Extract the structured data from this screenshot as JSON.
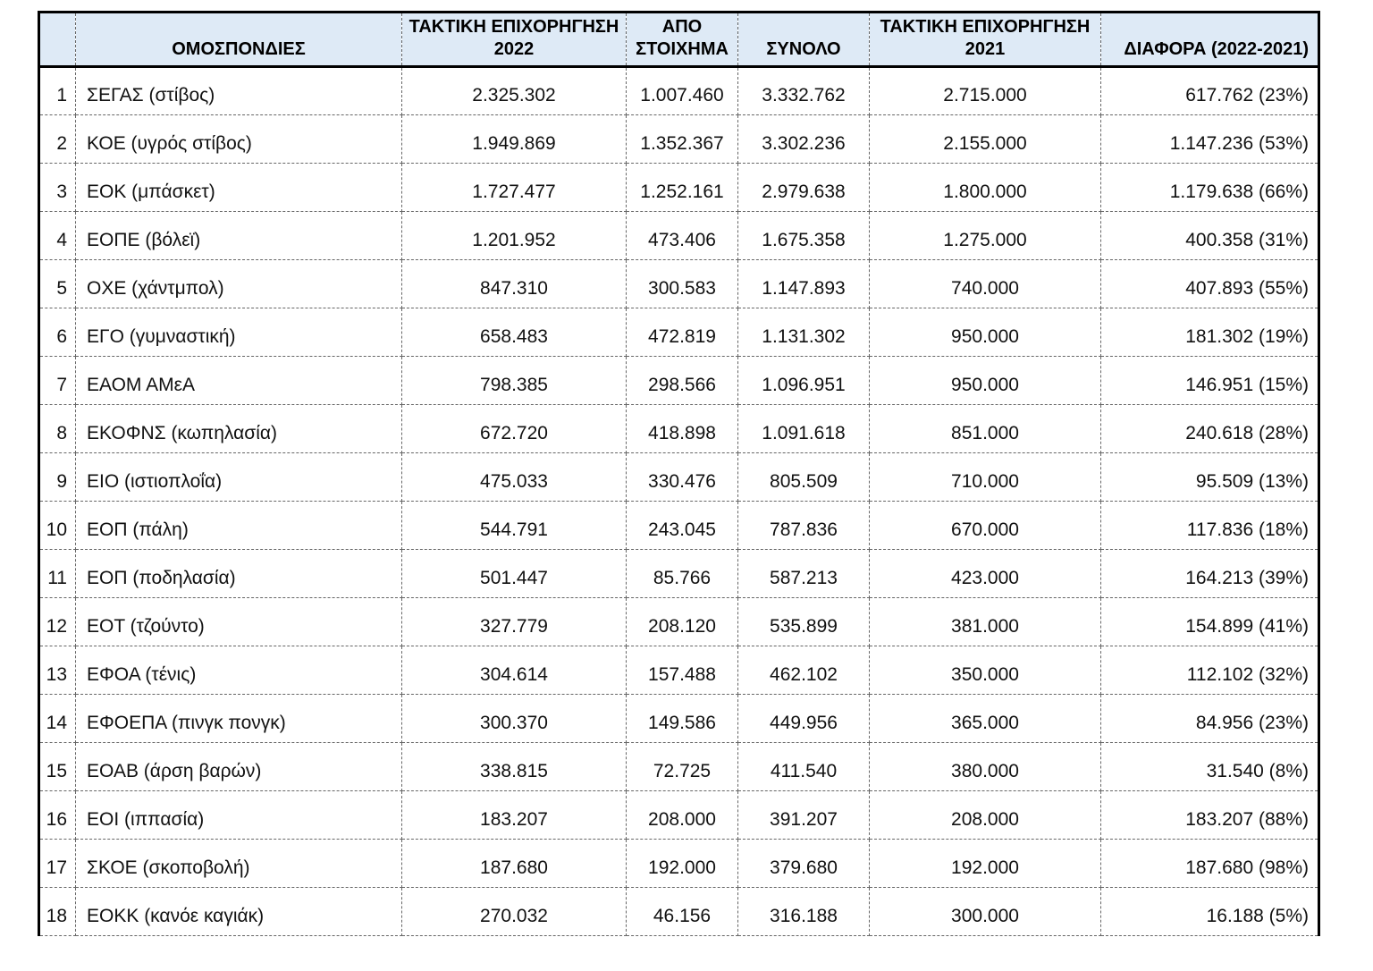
{
  "document": {
    "type": "funding-table",
    "language": "el"
  },
  "colors": {
    "header_bg": "#deeaf6",
    "outer_border": "#000000",
    "grid_border": "#666666",
    "text": "#111111"
  },
  "table": {
    "headers": [
      {
        "key": "num",
        "label": ""
      },
      {
        "key": "name",
        "label": "ΟΜΟΣΠΟΝΔΙΕΣ"
      },
      {
        "key": "g22",
        "label": "ΤΑΚΤΙΚΗ ΕΠΙΧΟΡΗΓΗΣΗ 2022"
      },
      {
        "key": "bet",
        "label": "ΑΠΟ ΣΤΟΙΧΗΜΑ"
      },
      {
        "key": "total",
        "label": "ΣΥΝΟΛΟ"
      },
      {
        "key": "g21",
        "label": "ΤΑΚΤΙΚΗ ΕΠΙΧΟΡΗΓΗΣΗ 2021"
      },
      {
        "key": "diff",
        "label": "ΔΙΑΦΟΡΑ (2022-2021)"
      }
    ],
    "rows": [
      {
        "num": "1",
        "name": "ΣΕΓΑΣ (στίβος)",
        "g22": "2.325.302",
        "bet": "1.007.460",
        "total": "3.332.762",
        "g21": "2.715.000",
        "diff": "617.762 (23%)"
      },
      {
        "num": "2",
        "name": "ΚΟΕ (υγρός στίβος)",
        "g22": "1.949.869",
        "bet": "1.352.367",
        "total": "3.302.236",
        "g21": "2.155.000",
        "diff": "1.147.236 (53%)"
      },
      {
        "num": "3",
        "name": "ΕΟΚ (μπάσκετ)",
        "g22": "1.727.477",
        "bet": "1.252.161",
        "total": "2.979.638",
        "g21": "1.800.000",
        "diff": "1.179.638 (66%)"
      },
      {
        "num": "4",
        "name": "ΕΟΠΕ (βόλεϊ)",
        "g22": "1.201.952",
        "bet": "473.406",
        "total": "1.675.358",
        "g21": "1.275.000",
        "diff": "400.358 (31%)"
      },
      {
        "num": "5",
        "name": "ΟΧΕ (χάντμπολ)",
        "g22": "847.310",
        "bet": "300.583",
        "total": "1.147.893",
        "g21": "740.000",
        "diff": "407.893 (55%)"
      },
      {
        "num": "6",
        "name": "ΕΓΟ (γυμναστική)",
        "g22": "658.483",
        "bet": "472.819",
        "total": "1.131.302",
        "g21": "950.000",
        "diff": "181.302 (19%)"
      },
      {
        "num": "7",
        "name": "ΕΑΟΜ ΑΜεΑ",
        "g22": "798.385",
        "bet": "298.566",
        "total": "1.096.951",
        "g21": "950.000",
        "diff": "146.951 (15%)"
      },
      {
        "num": "8",
        "name": "ΕΚΟΦΝΣ (κωπηλασία)",
        "g22": "672.720",
        "bet": "418.898",
        "total": "1.091.618",
        "g21": "851.000",
        "diff": "240.618 (28%)"
      },
      {
        "num": "9",
        "name": "ΕΙΟ (ιστιοπλοΐα)",
        "g22": "475.033",
        "bet": "330.476",
        "total": "805.509",
        "g21": "710.000",
        "diff": "95.509 (13%)"
      },
      {
        "num": "10",
        "name": "ΕΟΠ (πάλη)",
        "g22": "544.791",
        "bet": "243.045",
        "total": "787.836",
        "g21": "670.000",
        "diff": "117.836 (18%)"
      },
      {
        "num": "11",
        "name": "ΕΟΠ (ποδηλασία)",
        "g22": "501.447",
        "bet": "85.766",
        "total": "587.213",
        "g21": "423.000",
        "diff": "164.213 (39%)"
      },
      {
        "num": "12",
        "name": "ΕΟΤ (τζούντο)",
        "g22": "327.779",
        "bet": "208.120",
        "total": "535.899",
        "g21": "381.000",
        "diff": "154.899 (41%)"
      },
      {
        "num": "13",
        "name": "ΕΦΟΑ (τένις)",
        "g22": "304.614",
        "bet": "157.488",
        "total": "462.102",
        "g21": "350.000",
        "diff": "112.102 (32%)"
      },
      {
        "num": "14",
        "name": "ΕΦΟΕΠΑ (πινγκ πονγκ)",
        "g22": "300.370",
        "bet": "149.586",
        "total": "449.956",
        "g21": "365.000",
        "diff": "84.956 (23%)"
      },
      {
        "num": "15",
        "name": "ΕΟΑΒ (άρση βαρών)",
        "g22": "338.815",
        "bet": "72.725",
        "total": "411.540",
        "g21": "380.000",
        "diff": "31.540 (8%)"
      },
      {
        "num": "16",
        "name": "ΕΟΙ (ιππασία)",
        "g22": "183.207",
        "bet": "208.000",
        "total": "391.207",
        "g21": "208.000",
        "diff": "183.207 (88%)"
      },
      {
        "num": "17",
        "name": "ΣΚΟΕ (σκοποβολή)",
        "g22": "187.680",
        "bet": "192.000",
        "total": "379.680",
        "g21": "192.000",
        "diff": "187.680 (98%)"
      },
      {
        "num": "18",
        "name": "ΕΟΚΚ (κανόε καγιάκ)",
        "g22": "270.032",
        "bet": "46.156",
        "total": "316.188",
        "g21": "300.000",
        "diff": "16.188 (5%)"
      }
    ]
  }
}
